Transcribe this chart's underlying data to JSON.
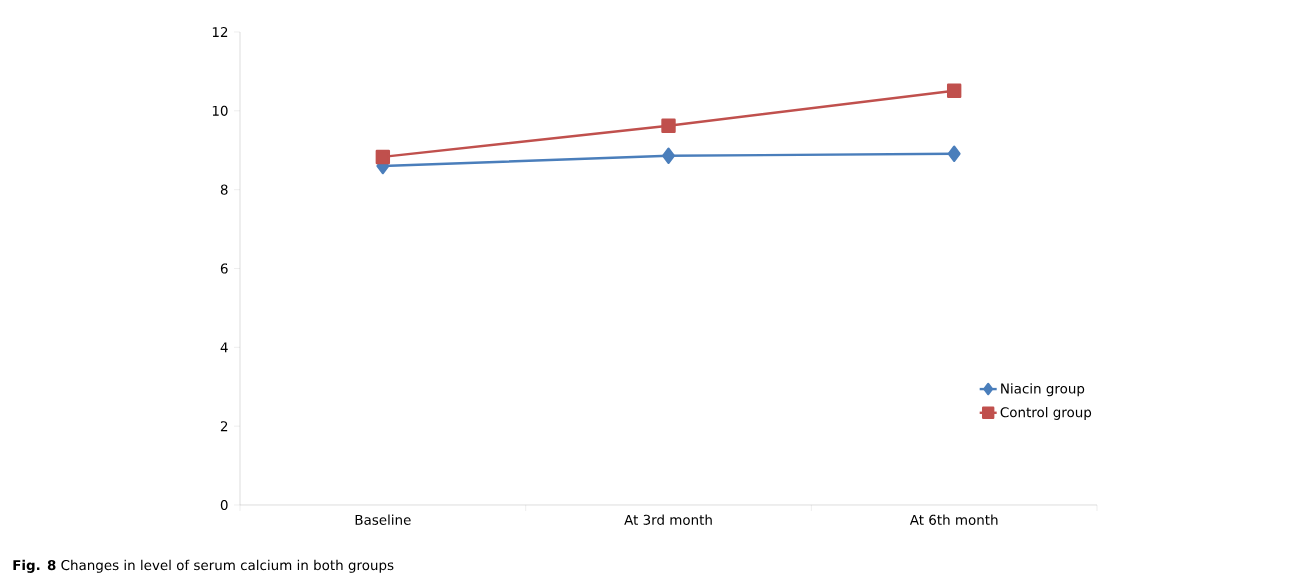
{
  "chart_data": {
    "type": "line",
    "title": "**Fig. 8** Changes in level of serum calcium in both groups",
    "categories": [
      "Baseline",
      "At 3rd month",
      "At 6th month"
    ],
    "series": [
      {
        "name": "Niacin group",
        "color": "#4a7ebb",
        "marker": "diamond",
        "values": [
          8.6,
          8.86,
          8.91
        ]
      },
      {
        "name": "Control group",
        "color": "#c0504d",
        "marker": "square",
        "values": [
          8.83,
          9.62,
          10.51
        ]
      }
    ],
    "ylim": [
      0,
      12
    ],
    "yticks": [
      0,
      2,
      4,
      6,
      8,
      10,
      12
    ],
    "grid": false,
    "legend": "right",
    "line_style": "solid"
  }
}
